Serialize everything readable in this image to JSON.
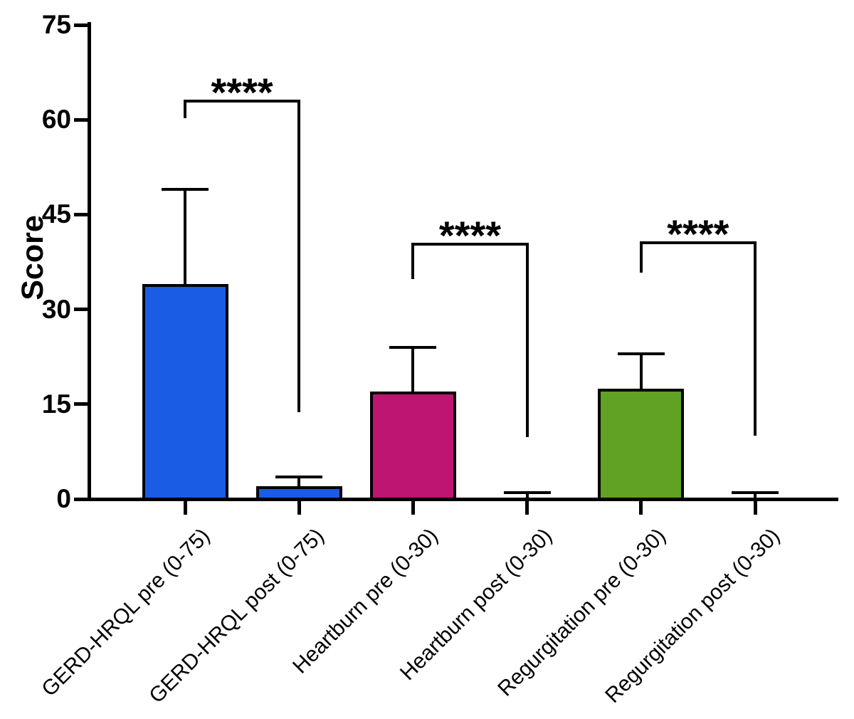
{
  "chart_data": {
    "type": "bar",
    "title": "",
    "xlabel": "",
    "ylabel": "Score",
    "ylim": [
      0,
      75
    ],
    "y_ticks": [
      0,
      15,
      30,
      45,
      60,
      75
    ],
    "grid": false,
    "legend": null,
    "background_color": "#FFFFFF",
    "axis_color": "#000000",
    "bar_outline_color": "#000000",
    "x_tick_rotation_deg": 45,
    "error_bars": "upper whisker with cap",
    "categories": [
      "GERD-HRQL pre (0-75)",
      "GERD-HRQL post (0-75)",
      "Heartburn pre (0-30)",
      "Heartburn post (0-30)",
      "Regurgitation pre (0-30)",
      "Regurgitation post (0-30)"
    ],
    "bars": [
      {
        "label": "GERD-HRQL pre (0-75)",
        "mean": 34,
        "error_top": 49,
        "color": "#1B5CE4"
      },
      {
        "label": "GERD-HRQL post (0-75)",
        "mean": 2,
        "error_top": 3.5,
        "color": "#1B5CE4"
      },
      {
        "label": "Heartburn pre (0-30)",
        "mean": 17,
        "error_top": 24,
        "color": "#BE1572"
      },
      {
        "label": "Heartburn post (0-30)",
        "mean": 0,
        "error_top": 1,
        "color": "#BE1572"
      },
      {
        "label": "Regurgitation pre (0-30)",
        "mean": 17.5,
        "error_top": 23,
        "color": "#61A123"
      },
      {
        "label": "Regurgitation post (0-30)",
        "mean": 0,
        "error_top": 1,
        "color": "#61A123"
      }
    ],
    "significance_brackets": [
      {
        "from": 0,
        "to": 1,
        "label": "****",
        "y": 63,
        "left_drop_to": 60.5,
        "right_drop_to": 14
      },
      {
        "from": 2,
        "to": 3,
        "label": "****",
        "y": 40.3,
        "left_drop_to": 35,
        "right_drop_to": 10
      },
      {
        "from": 4,
        "to": 5,
        "label": "****",
        "y": 40.5,
        "left_drop_to": 36,
        "right_drop_to": 10.2
      }
    ]
  }
}
